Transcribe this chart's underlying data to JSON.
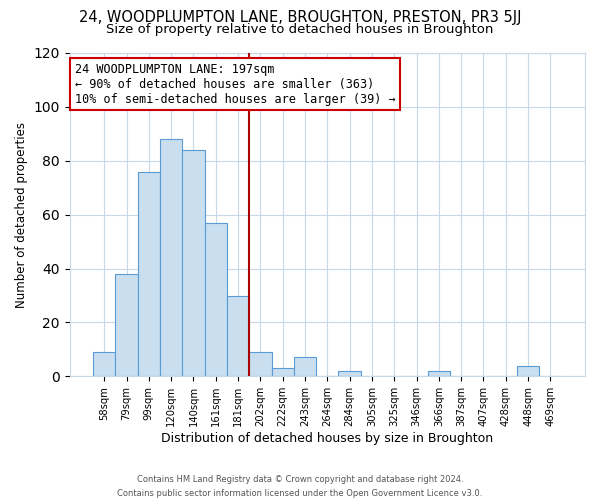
{
  "title": "24, WOODPLUMPTON LANE, BROUGHTON, PRESTON, PR3 5JJ",
  "subtitle": "Size of property relative to detached houses in Broughton",
  "xlabel": "Distribution of detached houses by size in Broughton",
  "ylabel": "Number of detached properties",
  "bar_labels": [
    "58sqm",
    "79sqm",
    "99sqm",
    "120sqm",
    "140sqm",
    "161sqm",
    "181sqm",
    "202sqm",
    "222sqm",
    "243sqm",
    "264sqm",
    "284sqm",
    "305sqm",
    "325sqm",
    "346sqm",
    "366sqm",
    "387sqm",
    "407sqm",
    "428sqm",
    "448sqm",
    "469sqm"
  ],
  "bar_values": [
    9,
    38,
    76,
    88,
    84,
    57,
    30,
    9,
    3,
    7,
    0,
    2,
    0,
    0,
    0,
    2,
    0,
    0,
    0,
    4,
    0
  ],
  "bar_color": "#c9dff0",
  "bar_edge_color": "#5b9bd5",
  "vline_color": "#aa0000",
  "annotation_title": "24 WOODPLUMPTON LANE: 197sqm",
  "annotation_line1": "← 90% of detached houses are smaller (363)",
  "annotation_line2": "10% of semi-detached houses are larger (39) →",
  "annotation_box_color": "#ffffff",
  "annotation_box_edge": "#cc0000",
  "ylim": [
    0,
    120
  ],
  "yticks": [
    0,
    20,
    40,
    60,
    80,
    100,
    120
  ],
  "footer_line1": "Contains HM Land Registry data © Crown copyright and database right 2024.",
  "footer_line2": "Contains public sector information licensed under the Open Government Licence v3.0.",
  "bg_color": "#ffffff",
  "grid_color": "#c8d8e8",
  "title_fontsize": 10.5,
  "subtitle_fontsize": 9.5,
  "vline_bar_index": 6.5
}
